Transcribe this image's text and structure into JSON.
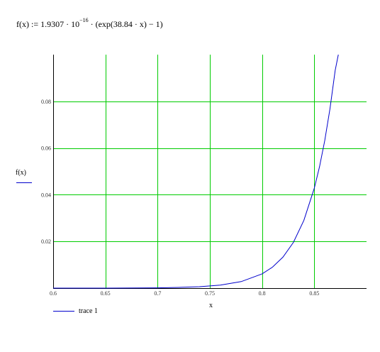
{
  "formula": {
    "pre": "f(x) := 1.9307 · 10",
    "exp": "−16",
    "post": " · (exp(38.84 · x) − 1)"
  },
  "chart_data": {
    "type": "line",
    "xlabel": "x",
    "ylabel": "f(x)",
    "xlim": [
      0.6,
      0.9
    ],
    "ylim": [
      0,
      0.1
    ],
    "x_ticks": [
      "0.6",
      "0.65",
      "0.7",
      "0.75",
      "0.8",
      "0.85"
    ],
    "x_tick_values": [
      0.6,
      0.65,
      0.7,
      0.75,
      0.8,
      0.85
    ],
    "y_ticks": [
      "0.02",
      "0.04",
      "0.06",
      "0.08"
    ],
    "y_tick_values": [
      0.02,
      0.04,
      0.06,
      0.08
    ],
    "grid": true,
    "legend_position": "bottom-left",
    "series": [
      {
        "name": "trace 1",
        "color": "#0000cc",
        "x": [
          0.6,
          0.65,
          0.7,
          0.72,
          0.74,
          0.76,
          0.78,
          0.8,
          0.81,
          0.82,
          0.83,
          0.84,
          0.85,
          0.855,
          0.86,
          0.865,
          0.87,
          0.873
        ],
        "y": [
          0.0,
          0.0,
          0.0001,
          0.0003,
          0.0006,
          0.0013,
          0.0028,
          0.0061,
          0.009,
          0.0133,
          0.0196,
          0.029,
          0.0428,
          0.052,
          0.0632,
          0.0768,
          0.0933,
          0.1
        ]
      }
    ],
    "grid_color": "#00cc00"
  },
  "legend": {
    "label": "trace 1"
  }
}
